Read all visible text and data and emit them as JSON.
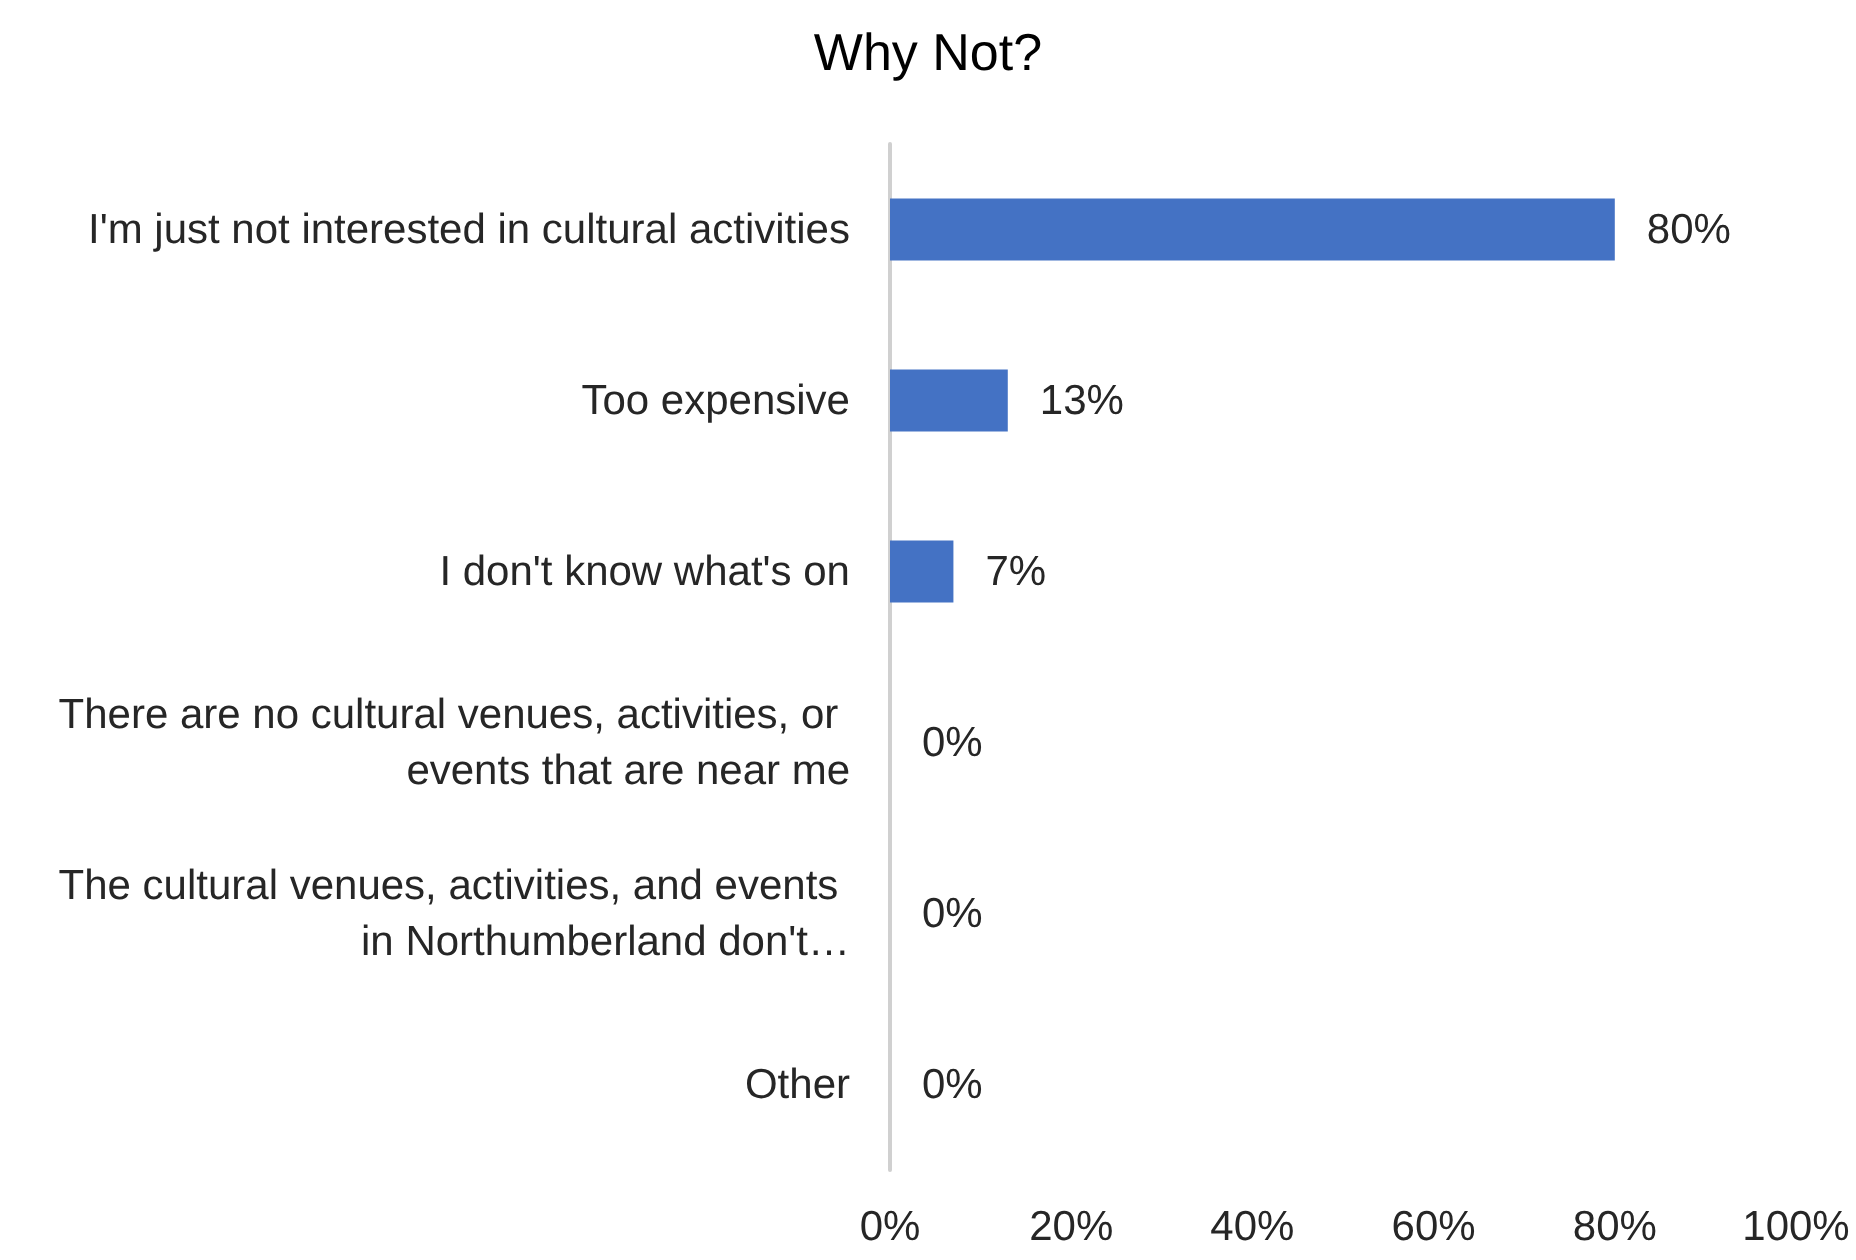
{
  "chart_data": {
    "type": "bar",
    "title": "Why Not?",
    "orientation": "horizontal",
    "categories": [
      "I'm just not interested in cultural activities",
      "Too expensive",
      "I don't know what's on",
      "There are no cultural venues, activities, or events that are near me",
      "The cultural venues, activities, and events in Northumberland don't…",
      "Other"
    ],
    "values": [
      80,
      13,
      7,
      0,
      0,
      0
    ],
    "value_labels": [
      "80%",
      "13%",
      "7%",
      "0%",
      "0%",
      "0%"
    ],
    "color": "#4472c4",
    "xlim": [
      0,
      100
    ],
    "xticks": [
      {
        "value": 0,
        "label": "0%"
      },
      {
        "value": 20,
        "label": "20%"
      },
      {
        "value": 40,
        "label": "40%"
      },
      {
        "value": 60,
        "label": "60%"
      },
      {
        "value": 80,
        "label": "80%"
      },
      {
        "value": 100,
        "label": "100%"
      }
    ],
    "grid": false
  }
}
